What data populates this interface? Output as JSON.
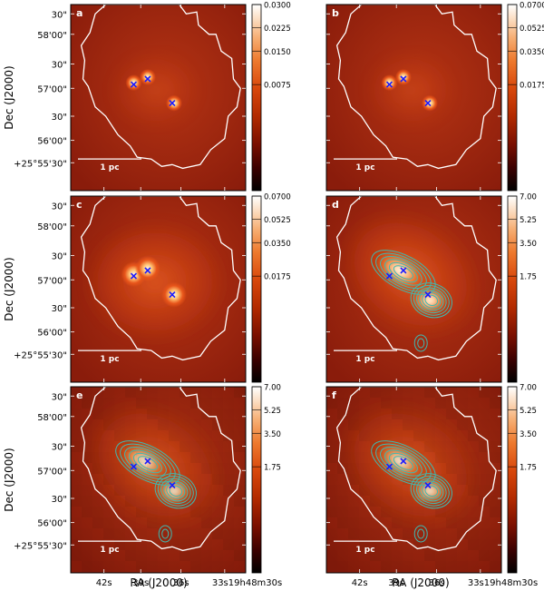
{
  "figure": {
    "colorbar_colors": [
      "#000000",
      "#3a0000",
      "#7a0f00",
      "#b22a00",
      "#d8470b",
      "#ee7a2e",
      "#f6ad72",
      "#fbdcc0",
      "#ffffff"
    ],
    "frame_color": "#000000",
    "outline_color": "#ffffff",
    "marker_color": "#1a1aff",
    "contour_color": "#3fb9b0",
    "panels": [
      {
        "id": "a",
        "label": "a",
        "scale_bar": "1 pc",
        "colorbar_ticks": [
          "0.0300",
          "0.0225",
          "0.0150",
          "0.0075"
        ],
        "has_contours": false,
        "pixelated": false,
        "show_y_labels": true,
        "show_x_labels": false
      },
      {
        "id": "b",
        "label": "b",
        "scale_bar": "1 pc",
        "colorbar_ticks": [
          "0.0700",
          "0.0525",
          "0.0350",
          "0.0175"
        ],
        "has_contours": false,
        "pixelated": false,
        "show_y_labels": false,
        "show_x_labels": false
      },
      {
        "id": "c",
        "label": "c",
        "scale_bar": "1 pc",
        "colorbar_ticks": [
          "0.0700",
          "0.0525",
          "0.0350",
          "0.0175"
        ],
        "has_contours": false,
        "pixelated": false,
        "show_y_labels": true,
        "show_x_labels": false
      },
      {
        "id": "d",
        "label": "d",
        "scale_bar": "1 pc",
        "colorbar_ticks": [
          "7.00",
          "5.25",
          "3.50",
          "1.75"
        ],
        "has_contours": true,
        "pixelated": false,
        "show_y_labels": false,
        "show_x_labels": false
      },
      {
        "id": "e",
        "label": "e",
        "scale_bar": "1 pc",
        "colorbar_ticks": [
          "7.00",
          "5.25",
          "3.50",
          "1.75"
        ],
        "has_contours": true,
        "pixelated": true,
        "show_y_labels": true,
        "show_x_labels": true
      },
      {
        "id": "f",
        "label": "f",
        "scale_bar": "1 pc",
        "colorbar_ticks": [
          "7.00",
          "5.25",
          "3.50",
          "1.75"
        ],
        "has_contours": true,
        "pixelated": true,
        "show_y_labels": false,
        "show_x_labels": true
      }
    ],
    "y_axis_label": "Dec (J2000)",
    "x_axis_label": "RA (J2000)",
    "dec_tick_labels": [
      "30\"",
      "58'00\"",
      "30\"",
      "57'00\"",
      "30\"",
      "56'00\"",
      "+25°55'30\""
    ],
    "ra_tick_labels": [
      "42s",
      "39s",
      "36s",
      "33s19h48m30s"
    ]
  }
}
